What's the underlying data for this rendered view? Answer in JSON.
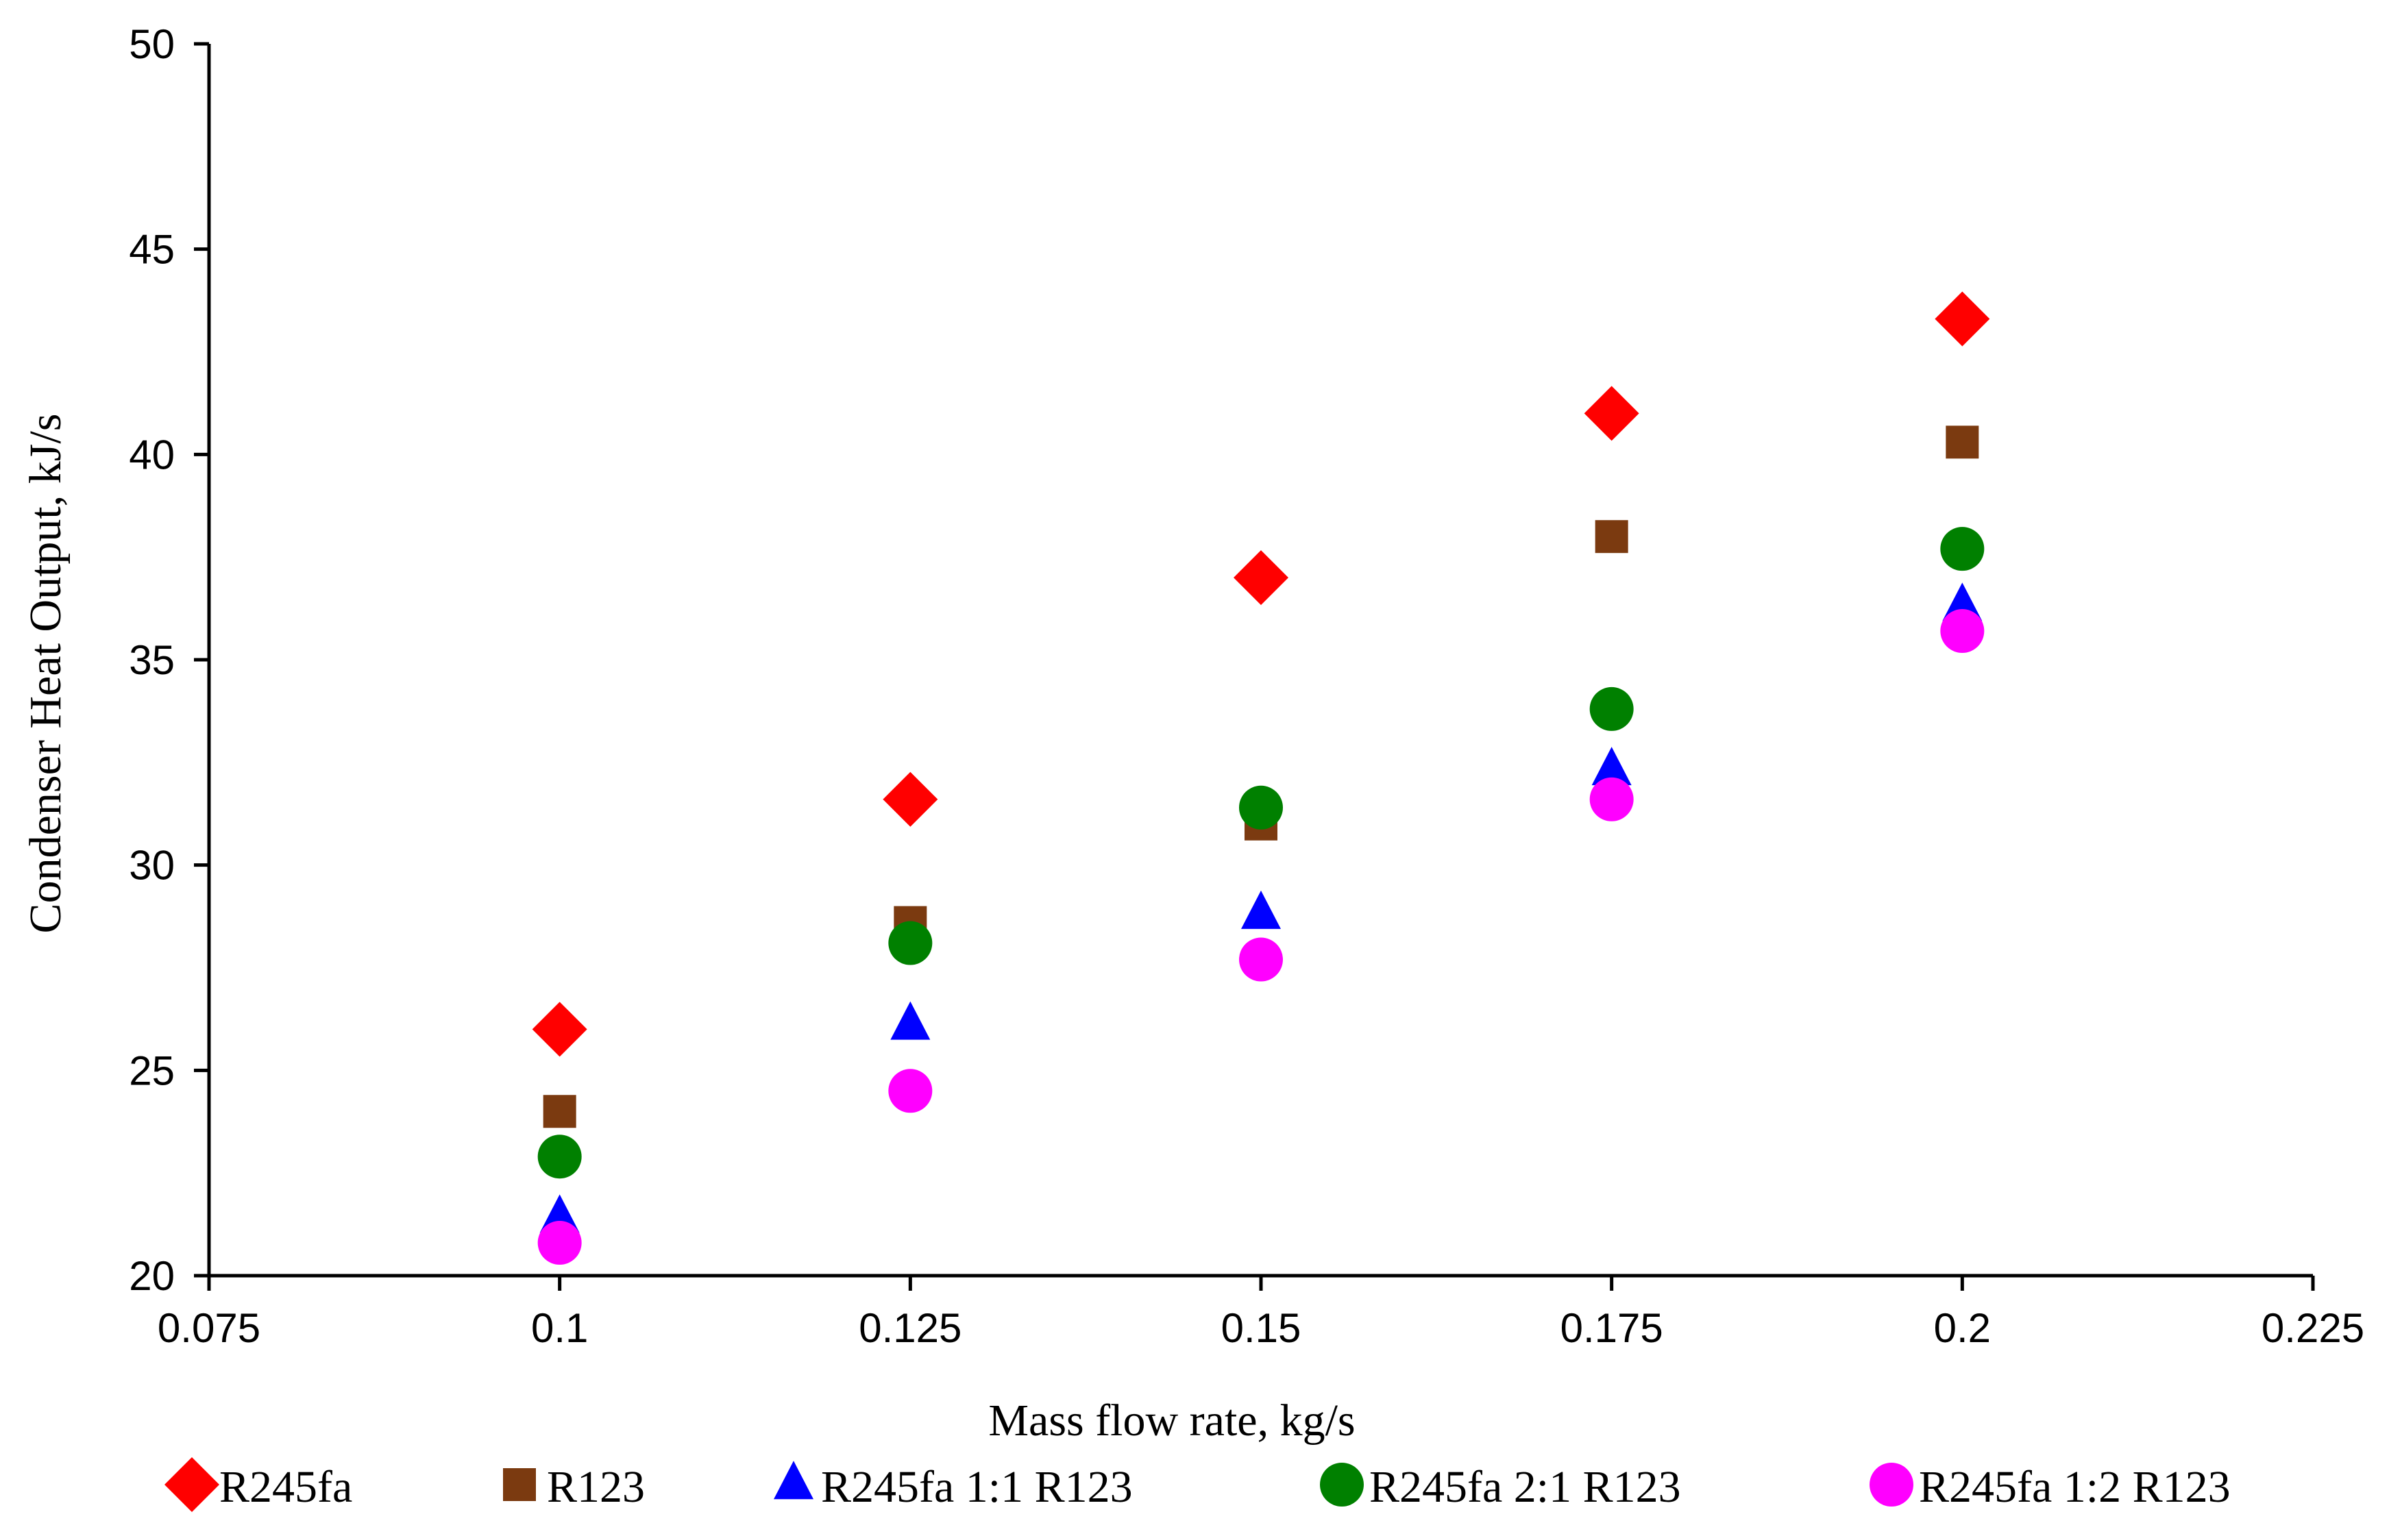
{
  "chart_data": {
    "type": "scatter",
    "title": "",
    "xlabel": "Mass flow rate, kg/s",
    "ylabel": "Condenser Heat Output, kJ/s",
    "xlim": [
      0.075,
      0.225
    ],
    "ylim": [
      20,
      50
    ],
    "xticks": [
      0.075,
      0.1,
      0.125,
      0.15,
      0.175,
      0.2,
      0.225
    ],
    "xtick_labels": [
      "0.075",
      "0.1",
      "0.125",
      "0.15",
      "0.175",
      "0.2",
      "0.225"
    ],
    "yticks": [
      20,
      25,
      30,
      35,
      40,
      45,
      50
    ],
    "ytick_labels": [
      "20",
      "25",
      "30",
      "35",
      "40",
      "45",
      "50"
    ],
    "grid": false,
    "legend_position": "bottom",
    "x": [
      0.1,
      0.125,
      0.15,
      0.175,
      0.2
    ],
    "series": [
      {
        "name": "R245fa",
        "marker": "diamond",
        "color": "#ff0000",
        "values": [
          26.0,
          31.6,
          37.0,
          41.0,
          43.3
        ]
      },
      {
        "name": "R123",
        "marker": "square",
        "color": "#7b3a10",
        "values": [
          24.0,
          28.6,
          31.0,
          38.0,
          40.3
        ]
      },
      {
        "name": "R245fa 1:1 R123",
        "marker": "triangle",
        "color": "#0000ff",
        "values": [
          21.4,
          26.1,
          28.8,
          32.3,
          36.3
        ]
      },
      {
        "name": "R245fa 2:1 R123",
        "marker": "circle",
        "color": "#008000",
        "values": [
          22.9,
          28.1,
          31.4,
          33.8,
          37.7
        ]
      },
      {
        "name": "R245fa 1:2 R123",
        "marker": "circle",
        "color": "#ff00ff",
        "values": [
          20.8,
          24.5,
          27.7,
          31.6,
          35.7
        ]
      }
    ]
  }
}
